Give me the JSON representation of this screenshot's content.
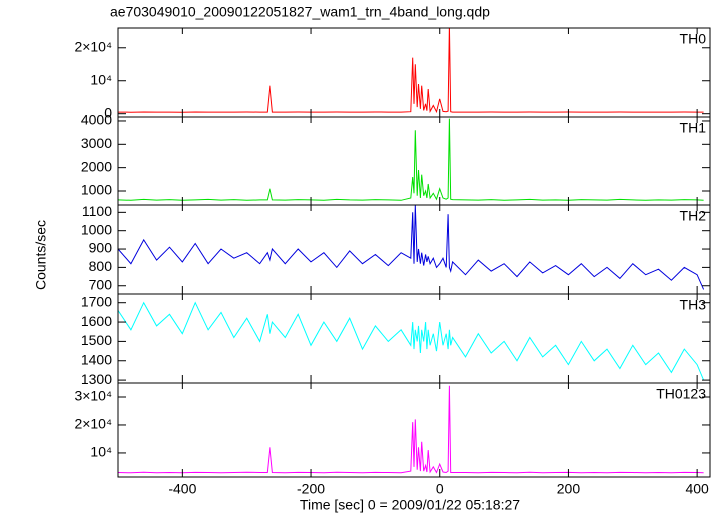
{
  "title": "ae703049010_20090122051827_wam1_trn_4band_long.qdp",
  "xlabel": "Time [sec] 0 = 2009/01/22 05:18:27",
  "ylabel": "Counts/sec",
  "xlim": [
    -500,
    420
  ],
  "xticks": [
    -400,
    -200,
    0,
    200,
    400
  ],
  "x": [
    -500,
    -480,
    -460,
    -440,
    -420,
    -400,
    -380,
    -360,
    -340,
    -320,
    -300,
    -280,
    -268,
    -264,
    -260,
    -240,
    -220,
    -200,
    -180,
    -160,
    -140,
    -120,
    -100,
    -80,
    -60,
    -45,
    -42,
    -40,
    -38,
    -35,
    -33,
    -30,
    -28,
    -25,
    -22,
    -20,
    -18,
    -15,
    -10,
    -5,
    0,
    5,
    10,
    13,
    15,
    17,
    20,
    40,
    60,
    80,
    100,
    120,
    140,
    160,
    180,
    200,
    220,
    240,
    260,
    280,
    300,
    320,
    340,
    360,
    380,
    400,
    410
  ],
  "chart_data": [
    {
      "type": "line",
      "label": "TH0",
      "color": "#ff0000",
      "ylim": [
        -1000,
        26000
      ],
      "yticks": [
        0,
        {
          "value": 10000,
          "label": "10⁴"
        },
        {
          "value": 20000,
          "label": "2×10⁴"
        }
      ],
      "values": [
        500,
        450,
        520,
        480,
        500,
        470,
        510,
        490,
        500,
        480,
        520,
        500,
        500,
        8500,
        500,
        480,
        510,
        500,
        490,
        520,
        500,
        480,
        510,
        500,
        490,
        600,
        17000,
        3000,
        15000,
        2000,
        9000,
        1500,
        8500,
        1000,
        3000,
        900,
        7500,
        700,
        2500,
        600,
        4500,
        700,
        600,
        800,
        27000,
        600,
        500,
        500,
        480,
        510,
        500,
        490,
        520,
        480,
        500,
        510,
        490,
        500,
        480,
        510,
        500,
        490,
        500,
        480,
        510,
        500,
        490
      ]
    },
    {
      "type": "line",
      "label": "TH1",
      "color": "#00e000",
      "ylim": [
        400,
        4170
      ],
      "yticks": [
        1000,
        2000,
        3000,
        4000
      ],
      "values": [
        620,
        600,
        640,
        610,
        630,
        600,
        620,
        640,
        610,
        630,
        600,
        620,
        620,
        1100,
        620,
        610,
        630,
        620,
        600,
        640,
        620,
        610,
        630,
        620,
        600,
        700,
        1600,
        900,
        3600,
        800,
        1900,
        700,
        1700,
        800,
        1000,
        700,
        1300,
        700,
        900,
        650,
        1100,
        700,
        650,
        700,
        4100,
        650,
        630,
        620,
        610,
        630,
        600,
        620,
        640,
        610,
        620,
        600,
        630,
        620,
        610,
        640,
        620,
        600,
        620,
        610,
        630,
        620,
        600
      ]
    },
    {
      "type": "line",
      "label": "TH2",
      "color": "#0000dd",
      "ylim": [
        655,
        1140
      ],
      "yticks": [
        700,
        800,
        900,
        1000,
        1100
      ],
      "values": [
        900,
        820,
        950,
        840,
        910,
        830,
        930,
        820,
        900,
        850,
        880,
        820,
        880,
        840,
        900,
        820,
        900,
        830,
        880,
        800,
        890,
        820,
        870,
        810,
        880,
        850,
        1100,
        820,
        1140,
        830,
        900,
        820,
        880,
        810,
        870,
        830,
        860,
        820,
        850,
        800,
        820,
        850,
        800,
        1090,
        800,
        780,
        830,
        760,
        840,
        780,
        820,
        750,
        830,
        770,
        810,
        760,
        820,
        750,
        800,
        740,
        820,
        760,
        790,
        730,
        800,
        760,
        680
      ]
    },
    {
      "type": "line",
      "label": "TH3",
      "color": "#00ffff",
      "ylim": [
        1285,
        1745
      ],
      "yticks": [
        1300,
        1400,
        1500,
        1600,
        1700
      ],
      "values": [
        1660,
        1560,
        1700,
        1580,
        1640,
        1540,
        1700,
        1560,
        1650,
        1520,
        1620,
        1500,
        1640,
        1540,
        1600,
        1520,
        1640,
        1480,
        1600,
        1500,
        1620,
        1460,
        1580,
        1500,
        1560,
        1480,
        1600,
        1460,
        1560,
        1500,
        1580,
        1440,
        1560,
        1500,
        1600,
        1460,
        1560,
        1480,
        1540,
        1450,
        1600,
        1480,
        1540,
        1460,
        1560,
        1480,
        1520,
        1420,
        1540,
        1440,
        1500,
        1400,
        1520,
        1420,
        1480,
        1380,
        1500,
        1400,
        1460,
        1360,
        1480,
        1380,
        1440,
        1340,
        1460,
        1380,
        1300
      ]
    },
    {
      "type": "line",
      "label": "TH0123",
      "color": "#ff00ff",
      "ylim": [
        1400,
        35000
      ],
      "yticks": [
        {
          "value": 10000,
          "label": "10⁴"
        },
        {
          "value": 20000,
          "label": "2×10⁴"
        },
        {
          "value": 30000,
          "label": "3×10⁴"
        }
      ],
      "values": [
        3000,
        2900,
        3100,
        2950,
        3000,
        2900,
        3050,
        3000,
        2950,
        3000,
        3100,
        3000,
        3000,
        12000,
        3000,
        2950,
        3050,
        3000,
        2900,
        3100,
        3000,
        2950,
        3050,
        3000,
        2900,
        3500,
        21000,
        5000,
        22000,
        4000,
        12000,
        3500,
        14000,
        3500,
        5500,
        3200,
        11000,
        3200,
        5000,
        3000,
        6000,
        3200,
        3000,
        3500,
        34000,
        3000,
        3000,
        3000,
        2950,
        3050,
        3000,
        2900,
        3100,
        2950,
        3000,
        3050,
        2900,
        3000,
        2950,
        3050,
        3000,
        2900,
        3000,
        2950,
        3050,
        3000,
        2900
      ]
    }
  ]
}
